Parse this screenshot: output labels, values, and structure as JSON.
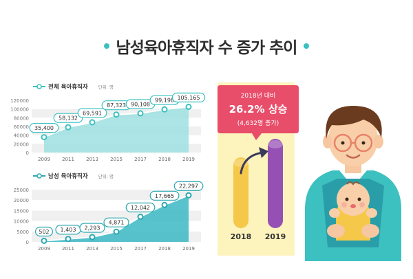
{
  "title": "남성육아휴직자 수 증가 추이",
  "colors": {
    "teal": "#3cc0c0",
    "teal_dark": "#2aa8b0",
    "yellow": "#f5c84a",
    "purple": "#9650b4",
    "pink": "#e84d6a",
    "panel": "#fdf3bd"
  },
  "chart_data": [
    {
      "type": "area",
      "legend": "전체 육아휴직자",
      "unit": "단위: 명",
      "categories": [
        "2009",
        "2011",
        "2013",
        "2015",
        "2017",
        "2018",
        "2019"
      ],
      "values": [
        35400,
        58132,
        69591,
        87323,
        90108,
        99198,
        105165
      ],
      "value_labels": [
        "35,400",
        "58,132",
        "69,591",
        "87,323",
        "90,108",
        "99,198",
        "105,165"
      ],
      "yticks": [
        "0",
        "20000",
        "40000",
        "60000",
        "80000",
        "100000",
        "120000"
      ],
      "ylim": [
        0,
        120000
      ]
    },
    {
      "type": "area",
      "legend": "남성 육아휴직자",
      "unit": "단위: 명",
      "categories": [
        "2009",
        "2011",
        "2013",
        "2015",
        "2017",
        "2018",
        "2019"
      ],
      "values": [
        502,
        1403,
        2293,
        4871,
        12042,
        17665,
        22297
      ],
      "value_labels": [
        "502",
        "1,403",
        "2,293",
        "4,871",
        "12,042",
        "17,665",
        "22,297"
      ],
      "yticks": [
        "0",
        "5000",
        "10000",
        "15000",
        "20000",
        "25000"
      ],
      "ylim": [
        0,
        25000
      ]
    },
    {
      "type": "bar",
      "categories": [
        "2018",
        "2019"
      ],
      "values": [
        17665,
        22297
      ],
      "callout": {
        "line1": "2018년 대비",
        "rate": "26.2%",
        "rise": "상승",
        "line3": "(4,632명 증가)"
      }
    }
  ]
}
